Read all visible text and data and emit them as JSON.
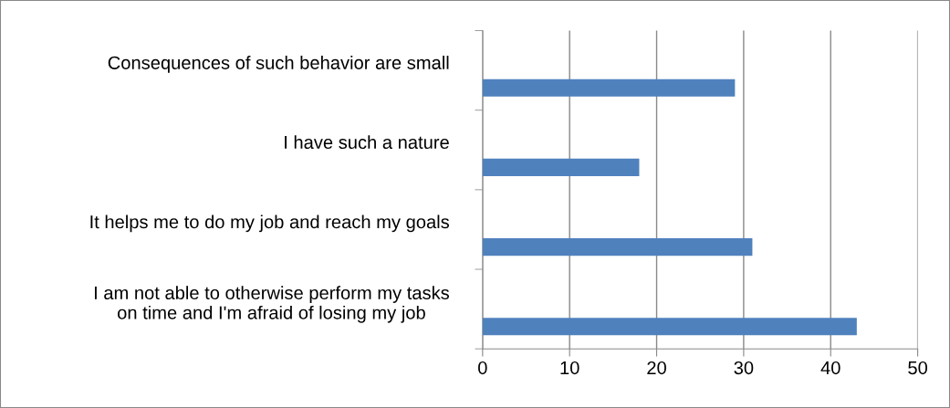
{
  "chart_data": {
    "type": "bar",
    "orientation": "horizontal",
    "categories": [
      "Consequences of such behavior are small",
      "I have such a nature",
      "It helps me to do my job and reach my goals",
      "I am not able to otherwise perform my tasks\non time and I'm afraid of losing my job"
    ],
    "values": [
      29,
      18,
      31,
      43
    ],
    "color": "#4f81bd",
    "xlim": [
      0,
      50
    ],
    "xticks": [
      0,
      10,
      20,
      30,
      40,
      50
    ],
    "grid": "x",
    "legend": false
  }
}
